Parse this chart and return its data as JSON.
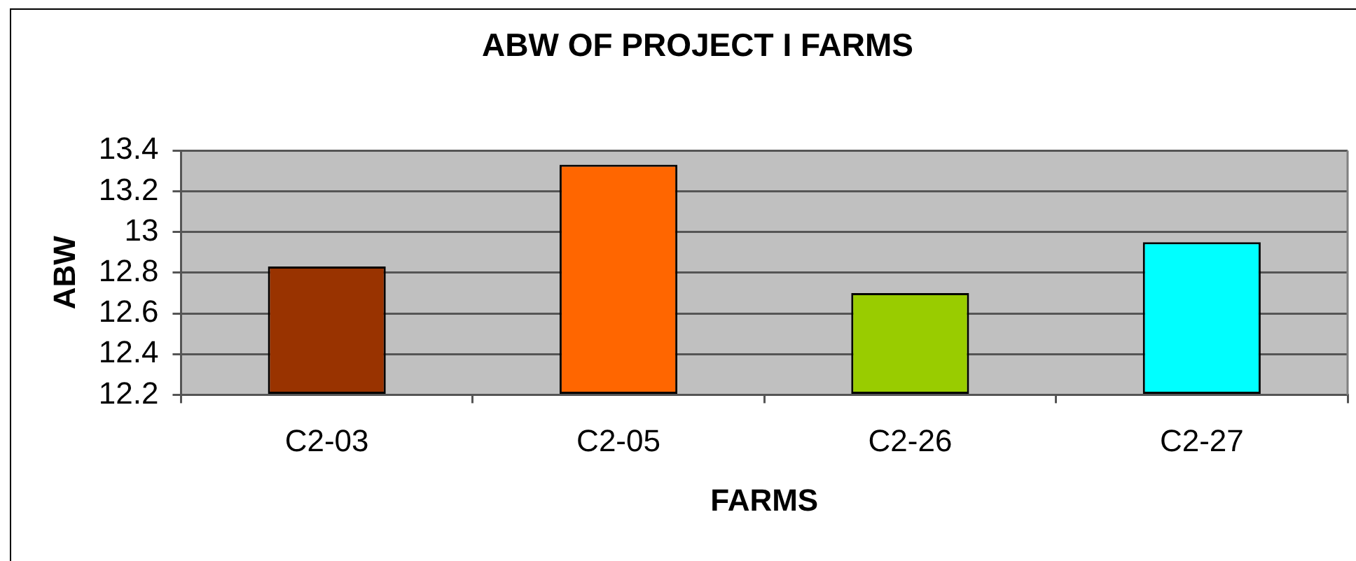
{
  "chart_data": {
    "type": "bar",
    "title": "ABW OF PROJECT I FARMS",
    "xlabel": "FARMS",
    "ylabel": "ABW",
    "categories": [
      "C2-03",
      "C2-05",
      "C2-26",
      "C2-27"
    ],
    "values": [
      12.83,
      13.33,
      12.7,
      12.95
    ],
    "colors": [
      "#993300",
      "#ff6600",
      "#99cc00",
      "#00ffff"
    ],
    "ylim": [
      12.2,
      13.4
    ],
    "yticks": [
      12.2,
      12.4,
      12.6,
      12.8,
      13,
      13.2,
      13.4
    ],
    "grid": "y",
    "legend": false
  }
}
